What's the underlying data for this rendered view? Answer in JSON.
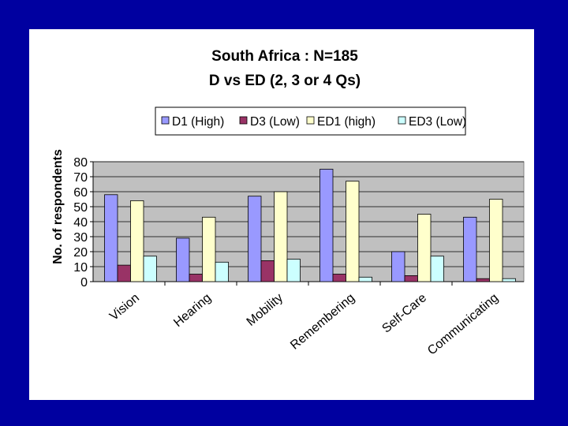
{
  "chart_data": {
    "type": "bar",
    "title": "South Africa : N=185",
    "subtitle": "D vs ED (2, 3 or 4 Qs)",
    "xlabel": "",
    "ylabel": "No. of respondents",
    "ylim": [
      0,
      80
    ],
    "yticks": [
      0,
      10,
      20,
      30,
      40,
      50,
      60,
      70,
      80
    ],
    "grid": true,
    "legend_position": "top",
    "categories": [
      "Vision",
      "Hearing",
      "Mobility",
      "Remembering",
      "Self-Care",
      "Communicating"
    ],
    "series": [
      {
        "name": "D1 (High)",
        "color": "#9999ff",
        "values": [
          58,
          29,
          57,
          75,
          20,
          43
        ]
      },
      {
        "name": "D3 (Low)",
        "color": "#993366",
        "values": [
          11,
          5,
          14,
          5,
          4,
          2
        ]
      },
      {
        "name": "ED1 (high)",
        "color": "#ffffcc",
        "values": [
          54,
          43,
          60,
          67,
          45,
          55
        ]
      },
      {
        "name": "ED3 (Low)",
        "color": "#ccffff",
        "values": [
          17,
          13,
          15,
          3,
          17,
          2
        ]
      }
    ]
  }
}
